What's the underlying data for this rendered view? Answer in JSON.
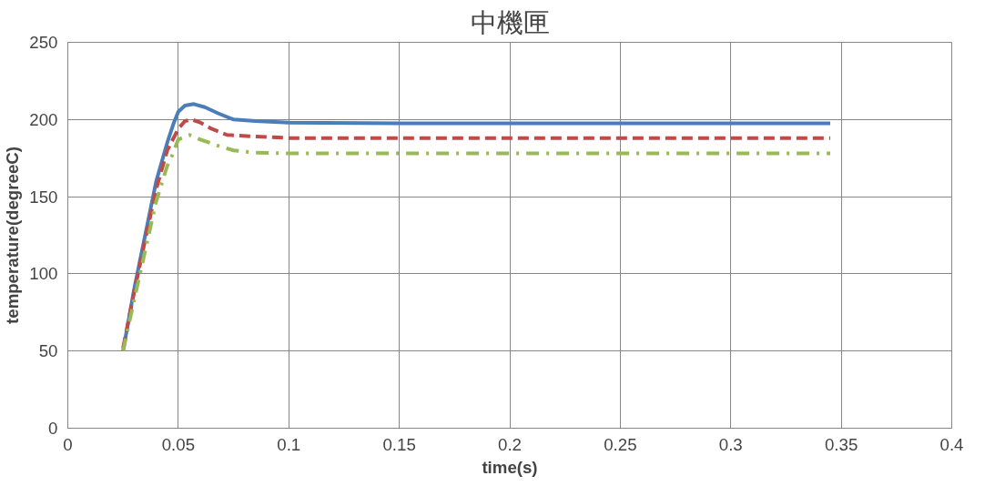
{
  "chart_data": {
    "type": "line",
    "title": "中機匣",
    "xlabel": "time(s)",
    "ylabel": "temperature(degreeC)",
    "xlim": [
      0,
      0.4
    ],
    "xticks": [
      0,
      0.05,
      0.1,
      0.15,
      0.2,
      0.25,
      0.3,
      0.35,
      0.4
    ],
    "ylim": [
      0,
      250
    ],
    "yticks": [
      0,
      50,
      100,
      150,
      200,
      250
    ],
    "grid": true,
    "marker": "none",
    "series": [
      {
        "color": "#4a7ebb",
        "line_style": "solid",
        "x": [
          0.025,
          0.03,
          0.035,
          0.04,
          0.045,
          0.048,
          0.05,
          0.053,
          0.057,
          0.062,
          0.068,
          0.075,
          0.085,
          0.1,
          0.15,
          0.345
        ],
        "values": [
          50,
          90,
          125,
          160,
          185,
          198,
          205,
          209,
          210,
          208,
          204,
          200,
          199,
          198,
          197.5,
          197.5
        ]
      },
      {
        "color": "#be4b48",
        "line_style": "dashed",
        "x": [
          0.025,
          0.03,
          0.035,
          0.04,
          0.045,
          0.05,
          0.053,
          0.056,
          0.06,
          0.065,
          0.072,
          0.085,
          0.1,
          0.345
        ],
        "values": [
          52,
          88,
          122,
          155,
          180,
          194,
          199,
          200,
          198,
          194,
          190,
          189,
          188,
          188
        ]
      },
      {
        "color": "#98b954",
        "line_style": "dashdot",
        "x": [
          0.025,
          0.03,
          0.035,
          0.04,
          0.045,
          0.047,
          0.05,
          0.055,
          0.06,
          0.068,
          0.075,
          0.085,
          0.1,
          0.345
        ],
        "values": [
          50,
          83,
          115,
          147,
          170,
          176,
          187,
          190,
          187,
          183,
          180,
          178.5,
          178,
          178
        ]
      }
    ]
  }
}
